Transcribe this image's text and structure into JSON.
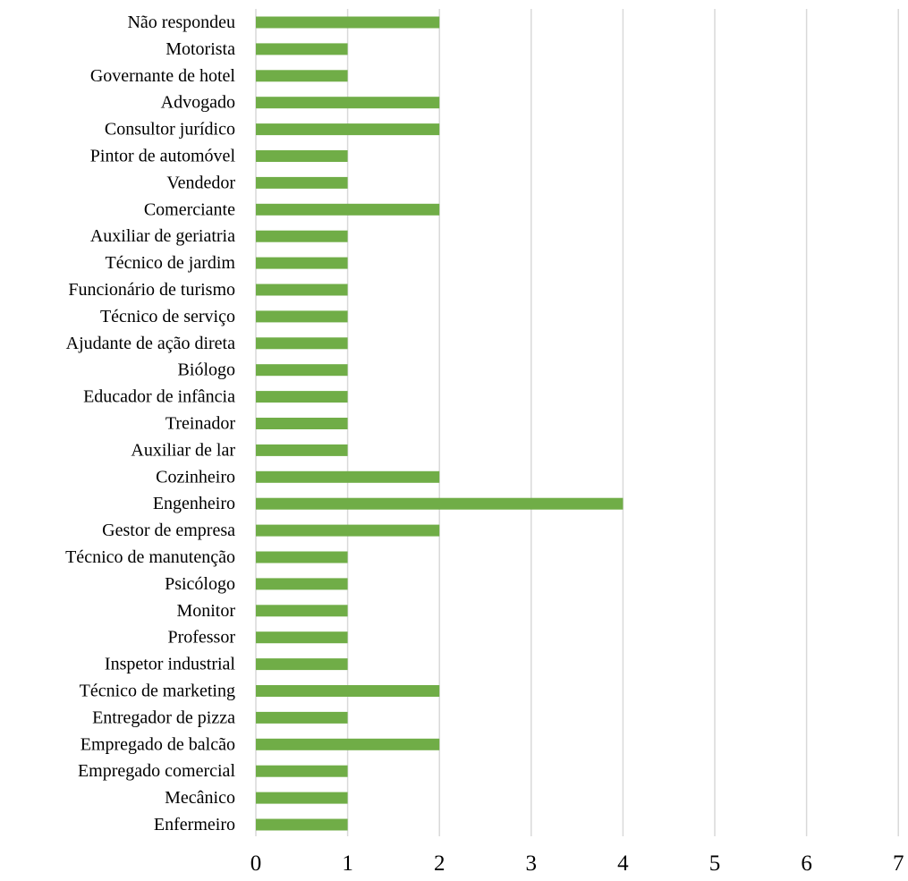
{
  "chart_data": {
    "type": "bar",
    "orientation": "horizontal",
    "title": "",
    "xlabel": "",
    "ylabel": "",
    "xlim": [
      0,
      7
    ],
    "x_ticks": [
      "0",
      "1",
      "2",
      "3",
      "4",
      "5",
      "6",
      "7"
    ],
    "grid": "vertical",
    "legend": "none",
    "categories": [
      "Não respondeu",
      "Motorista",
      "Governante de hotel",
      "Advogado",
      "Consultor jurídico",
      "Pintor de automóvel",
      "Vendedor",
      "Comerciante",
      "Auxiliar de geriatria",
      "Técnico de jardim",
      "Funcionário de turismo",
      "Técnico de serviço",
      "Ajudante de ação direta",
      "Biólogo",
      "Educador de infância",
      "Treinador",
      "Auxiliar de lar",
      "Cozinheiro",
      "Engenheiro",
      "Gestor de empresa",
      "Técnico de manutenção",
      "Psicólogo",
      "Monitor",
      "Professor",
      "Inspetor industrial",
      "Técnico de marketing",
      "Entregador de pizza",
      "Empregado de balcão",
      "Empregado comercial",
      "Mecânico",
      "Enfermeiro"
    ],
    "values": [
      2,
      1,
      1,
      2,
      2,
      1,
      1,
      2,
      1,
      1,
      1,
      1,
      1,
      1,
      1,
      1,
      1,
      2,
      4,
      2,
      1,
      1,
      1,
      1,
      1,
      2,
      1,
      2,
      1,
      1,
      1
    ],
    "colors": {
      "bar": "#70ad47",
      "grid": "#d9d9d9",
      "text": "#000000"
    }
  }
}
